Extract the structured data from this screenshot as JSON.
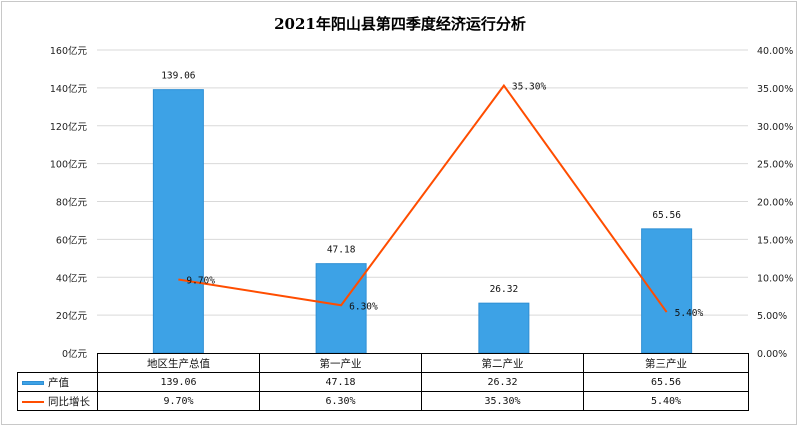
{
  "chart_data": {
    "type": "bar",
    "title": "2021年阳山县第四季度经济运行分析",
    "categories": [
      "地区生产总值",
      "第一产业",
      "第二产业",
      "第三产业"
    ],
    "series": [
      {
        "name": "产值",
        "type": "bar",
        "axis": "left",
        "values": [
          139.06,
          47.18,
          26.32,
          65.56
        ],
        "labels": [
          "139.06",
          "47.18",
          "26.32",
          "65.56"
        ],
        "color": "#3da2e6"
      },
      {
        "name": "同比增长",
        "type": "line",
        "axis": "right",
        "values": [
          9.7,
          6.3,
          35.3,
          5.4
        ],
        "labels": [
          "9.70%",
          "6.30%",
          "35.30%",
          "5.40%"
        ],
        "color": "#ff4d00"
      }
    ],
    "left_axis": {
      "ylim": [
        0,
        160
      ],
      "ticks": [
        "0亿元",
        "20亿元",
        "40亿元",
        "60亿元",
        "80亿元",
        "100亿元",
        "120亿元",
        "140亿元",
        "160亿元"
      ]
    },
    "right_axis": {
      "ylim": [
        0,
        40
      ],
      "ticks": [
        "0.00%",
        "5.00%",
        "10.00%",
        "15.00%",
        "20.00%",
        "25.00%",
        "30.00%",
        "35.00%",
        "40.00%"
      ]
    },
    "xlabel": "",
    "ylabel": "",
    "grid": true,
    "legend_position": "data-table-left"
  },
  "table": {
    "headers": [
      "地区生产总值",
      "第一产业",
      "第二产业",
      "第三产业"
    ],
    "rows": [
      {
        "legend": "产值",
        "values": [
          "139.06",
          "47.18",
          "26.32",
          "65.56"
        ]
      },
      {
        "legend": "同比增长",
        "values": [
          "9.70%",
          "6.30%",
          "35.30%",
          "5.40%"
        ]
      }
    ]
  }
}
